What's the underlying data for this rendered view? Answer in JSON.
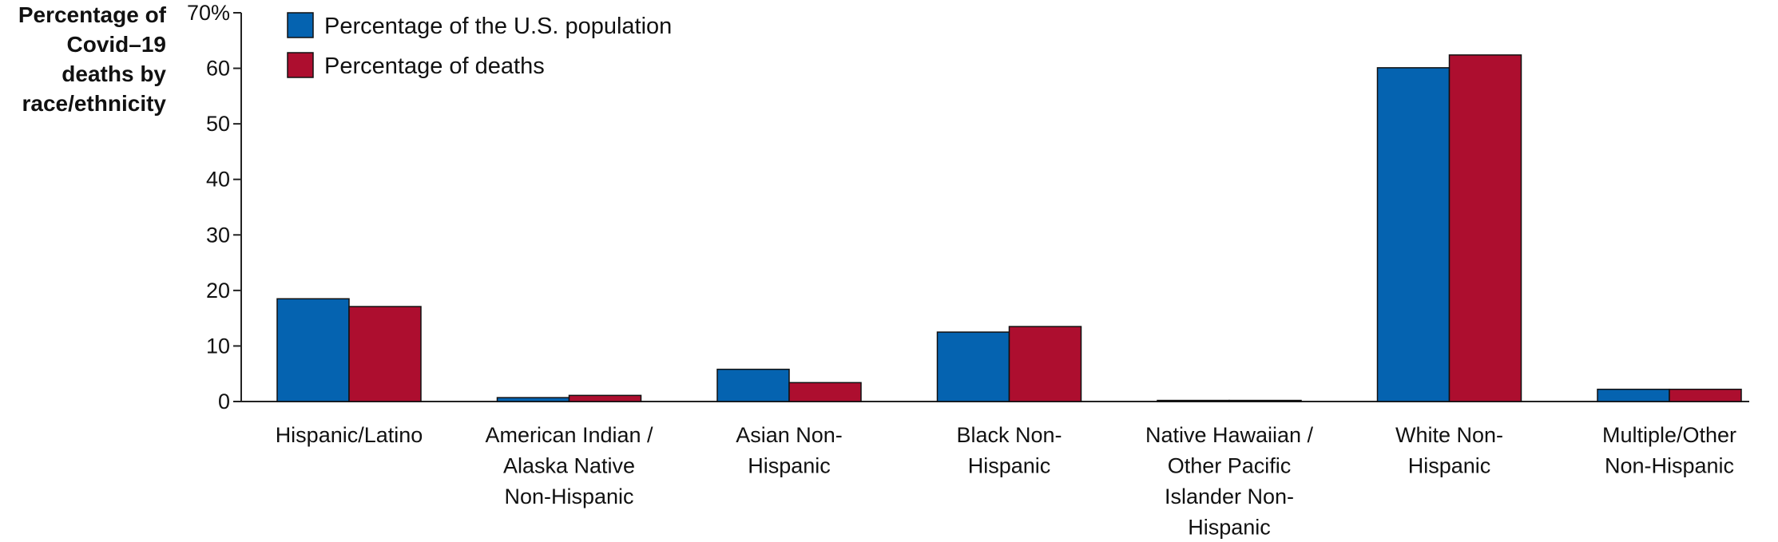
{
  "chart_data": {
    "type": "bar",
    "ylabel_lines": [
      "Percentage of",
      "Covid–19",
      "deaths by",
      "race/ethnicity"
    ],
    "categories": [
      [
        "Hispanic/Latino"
      ],
      [
        "American Indian /",
        "Alaska Native",
        "Non-Hispanic"
      ],
      [
        "Asian Non-",
        "Hispanic"
      ],
      [
        "Black Non-",
        "Hispanic"
      ],
      [
        "Native Hawaiian /",
        "Other Pacific",
        "Islander Non-",
        "Hispanic"
      ],
      [
        "White Non-",
        "Hispanic"
      ],
      [
        "Multiple/Other",
        "Non-Hispanic"
      ]
    ],
    "series": [
      {
        "name": "Percentage of the U.S. population",
        "color": "#0563b0",
        "values": [
          18.5,
          0.7,
          5.8,
          12.5,
          0.2,
          60.1,
          2.2
        ]
      },
      {
        "name": "Percentage of deaths",
        "color": "#ad0e2f",
        "values": [
          17.1,
          1.1,
          3.4,
          13.5,
          0.2,
          62.4,
          2.2
        ]
      }
    ],
    "ylim": [
      0,
      70
    ],
    "yticks": [
      0,
      10,
      20,
      30,
      40,
      50,
      60,
      70
    ],
    "ytick_labels": [
      "0",
      "10",
      "20",
      "30",
      "40",
      "50",
      "60",
      "70%"
    ],
    "grid": false,
    "legend_position": "top-left"
  }
}
